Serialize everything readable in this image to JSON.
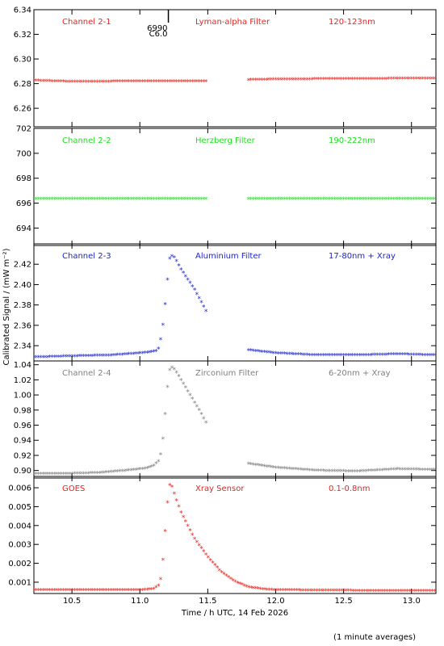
{
  "chart_data": {
    "type": "scatter",
    "xlabel": "Time / h UTC, 14 Feb 2026",
    "ylabel": "Calibrated Signal / (mW m⁻²)",
    "footnote": "(1 minute averages)",
    "xlim": [
      10.22,
      13.18
    ],
    "xticks": [
      "10.5",
      "11.0",
      "11.5",
      "12.0",
      "12.5",
      "13.0"
    ],
    "xtick_values": [
      10.5,
      11.0,
      11.5,
      12.0,
      12.5,
      13.0
    ],
    "gap": [
      11.5,
      11.8
    ],
    "marker": "*",
    "panels": [
      {
        "channel": "Channel 2-1",
        "filter": "Lyman-alpha Filter",
        "band": "120-123nm",
        "color": "#e8221c",
        "ylim": [
          6.245,
          6.34
        ],
        "yticks": [
          "6.26",
          "6.28",
          "6.30",
          "6.32",
          "6.34"
        ],
        "ytick_values": [
          6.26,
          6.28,
          6.3,
          6.32,
          6.34
        ],
        "annotation": {
          "x": 11.21,
          "label_top": "6990",
          "label_bottom": "C6.0"
        },
        "series": [
          {
            "x": [
              10.22,
              10.5,
              10.8,
              11.0,
              11.2,
              11.5
            ],
            "y": [
              6.282,
              6.281,
              6.2812,
              6.2815,
              6.2815,
              6.2815
            ]
          },
          {
            "x": [
              11.8,
              12.0,
              12.5,
              13.0,
              13.18
            ],
            "y": [
              6.2825,
              6.283,
              6.2833,
              6.2836,
              6.2838
            ]
          }
        ]
      },
      {
        "channel": "Channel 2-2",
        "filter": "Herzberg Filter",
        "band": "190-222nm",
        "color": "#22dd22",
        "ylim": [
          692.6,
          702.0
        ],
        "yticks": [
          "694",
          "696",
          "698",
          "700",
          "702"
        ],
        "ytick_values": [
          694,
          696,
          698,
          700,
          702
        ],
        "series": [
          {
            "x": [
              10.22,
              11.5
            ],
            "y": [
              696.3,
              696.3
            ]
          },
          {
            "x": [
              11.8,
              13.18
            ],
            "y": [
              696.3,
              696.3
            ]
          }
        ]
      },
      {
        "channel": "Channel 2-3",
        "filter": "Aluminium Filter",
        "band": "17-80nm + Xray",
        "color": "#1c26c8",
        "ylim": [
          2.325,
          2.44
        ],
        "yticks": [
          "2.34",
          "2.36",
          "2.38",
          "2.40",
          "2.42"
        ],
        "ytick_values": [
          2.34,
          2.36,
          2.38,
          2.4,
          2.42
        ],
        "series": [
          {
            "x": [
              10.22,
              10.5,
              10.8,
              11.0,
              11.08,
              11.12,
              11.14,
              11.16,
              11.18,
              11.2,
              11.22,
              11.24,
              11.26,
              11.3,
              11.35,
              11.4,
              11.45,
              11.5
            ],
            "y": [
              2.328,
              2.329,
              2.33,
              2.332,
              2.333,
              2.334,
              2.337,
              2.35,
              2.37,
              2.4,
              2.425,
              2.428,
              2.425,
              2.415,
              2.405,
              2.395,
              2.383,
              2.37
            ]
          },
          {
            "x": [
              11.8,
              12.0,
              12.3,
              12.6,
              12.9,
              13.18
            ],
            "y": [
              2.335,
              2.332,
              2.33,
              2.33,
              2.331,
              2.33
            ]
          }
        ]
      },
      {
        "channel": "Channel 2-4",
        "filter": "Zirconium Filter",
        "band": "6-20nm + Xray",
        "color": "#808080",
        "ylim": [
          0.89,
          1.045
        ],
        "yticks": [
          "0.90",
          "0.92",
          "0.94",
          "0.96",
          "0.98",
          "1.00",
          "1.02",
          "1.04"
        ],
        "ytick_values": [
          0.9,
          0.92,
          0.94,
          0.96,
          0.98,
          1.0,
          1.02,
          1.04
        ],
        "series": [
          {
            "x": [
              10.22,
              10.5,
              10.7,
              10.9,
              11.05,
              11.1,
              11.14,
              11.16,
              11.18,
              11.2,
              11.22,
              11.24,
              11.26,
              11.3,
              11.35,
              11.4,
              11.45,
              11.5
            ],
            "y": [
              0.895,
              0.895,
              0.896,
              0.899,
              0.902,
              0.905,
              0.912,
              0.925,
              0.958,
              1.005,
              1.032,
              1.036,
              1.032,
              1.02,
              1.005,
              0.99,
              0.975,
              0.958
            ]
          },
          {
            "x": [
              11.8,
              12.0,
              12.3,
              12.6,
              12.9,
              13.18
            ],
            "y": [
              0.908,
              0.903,
              0.899,
              0.898,
              0.901,
              0.9
            ]
          }
        ]
      },
      {
        "channel": "GOES",
        "filter": "Xray Sensor",
        "band": "0.1-0.8nm",
        "color": "#e8221c",
        "ylim": [
          0.0004,
          0.0066
        ],
        "yticks": [
          "0.001",
          "0.002",
          "0.003",
          "0.004",
          "0.005",
          "0.006"
        ],
        "ytick_values": [
          0.001,
          0.002,
          0.003,
          0.004,
          0.005,
          0.006
        ],
        "series": [
          {
            "x": [
              10.22,
              10.5,
              10.8,
              11.0,
              11.1,
              11.14,
              11.16,
              11.18,
              11.2,
              11.22,
              11.24,
              11.26,
              11.3,
              11.35,
              11.4,
              11.5,
              11.6,
              11.7,
              11.8,
              11.9,
              12.0,
              12.5,
              13.0,
              13.18
            ],
            "y": [
              0.00055,
              0.00055,
              0.00055,
              0.00055,
              0.0006,
              0.0008,
              0.0013,
              0.003,
              0.005,
              0.0061,
              0.006,
              0.0055,
              0.0047,
              0.004,
              0.0033,
              0.0023,
              0.0015,
              0.001,
              0.0007,
              0.0006,
              0.00055,
              0.00052,
              0.0005,
              0.0005
            ]
          }
        ]
      }
    ]
  }
}
